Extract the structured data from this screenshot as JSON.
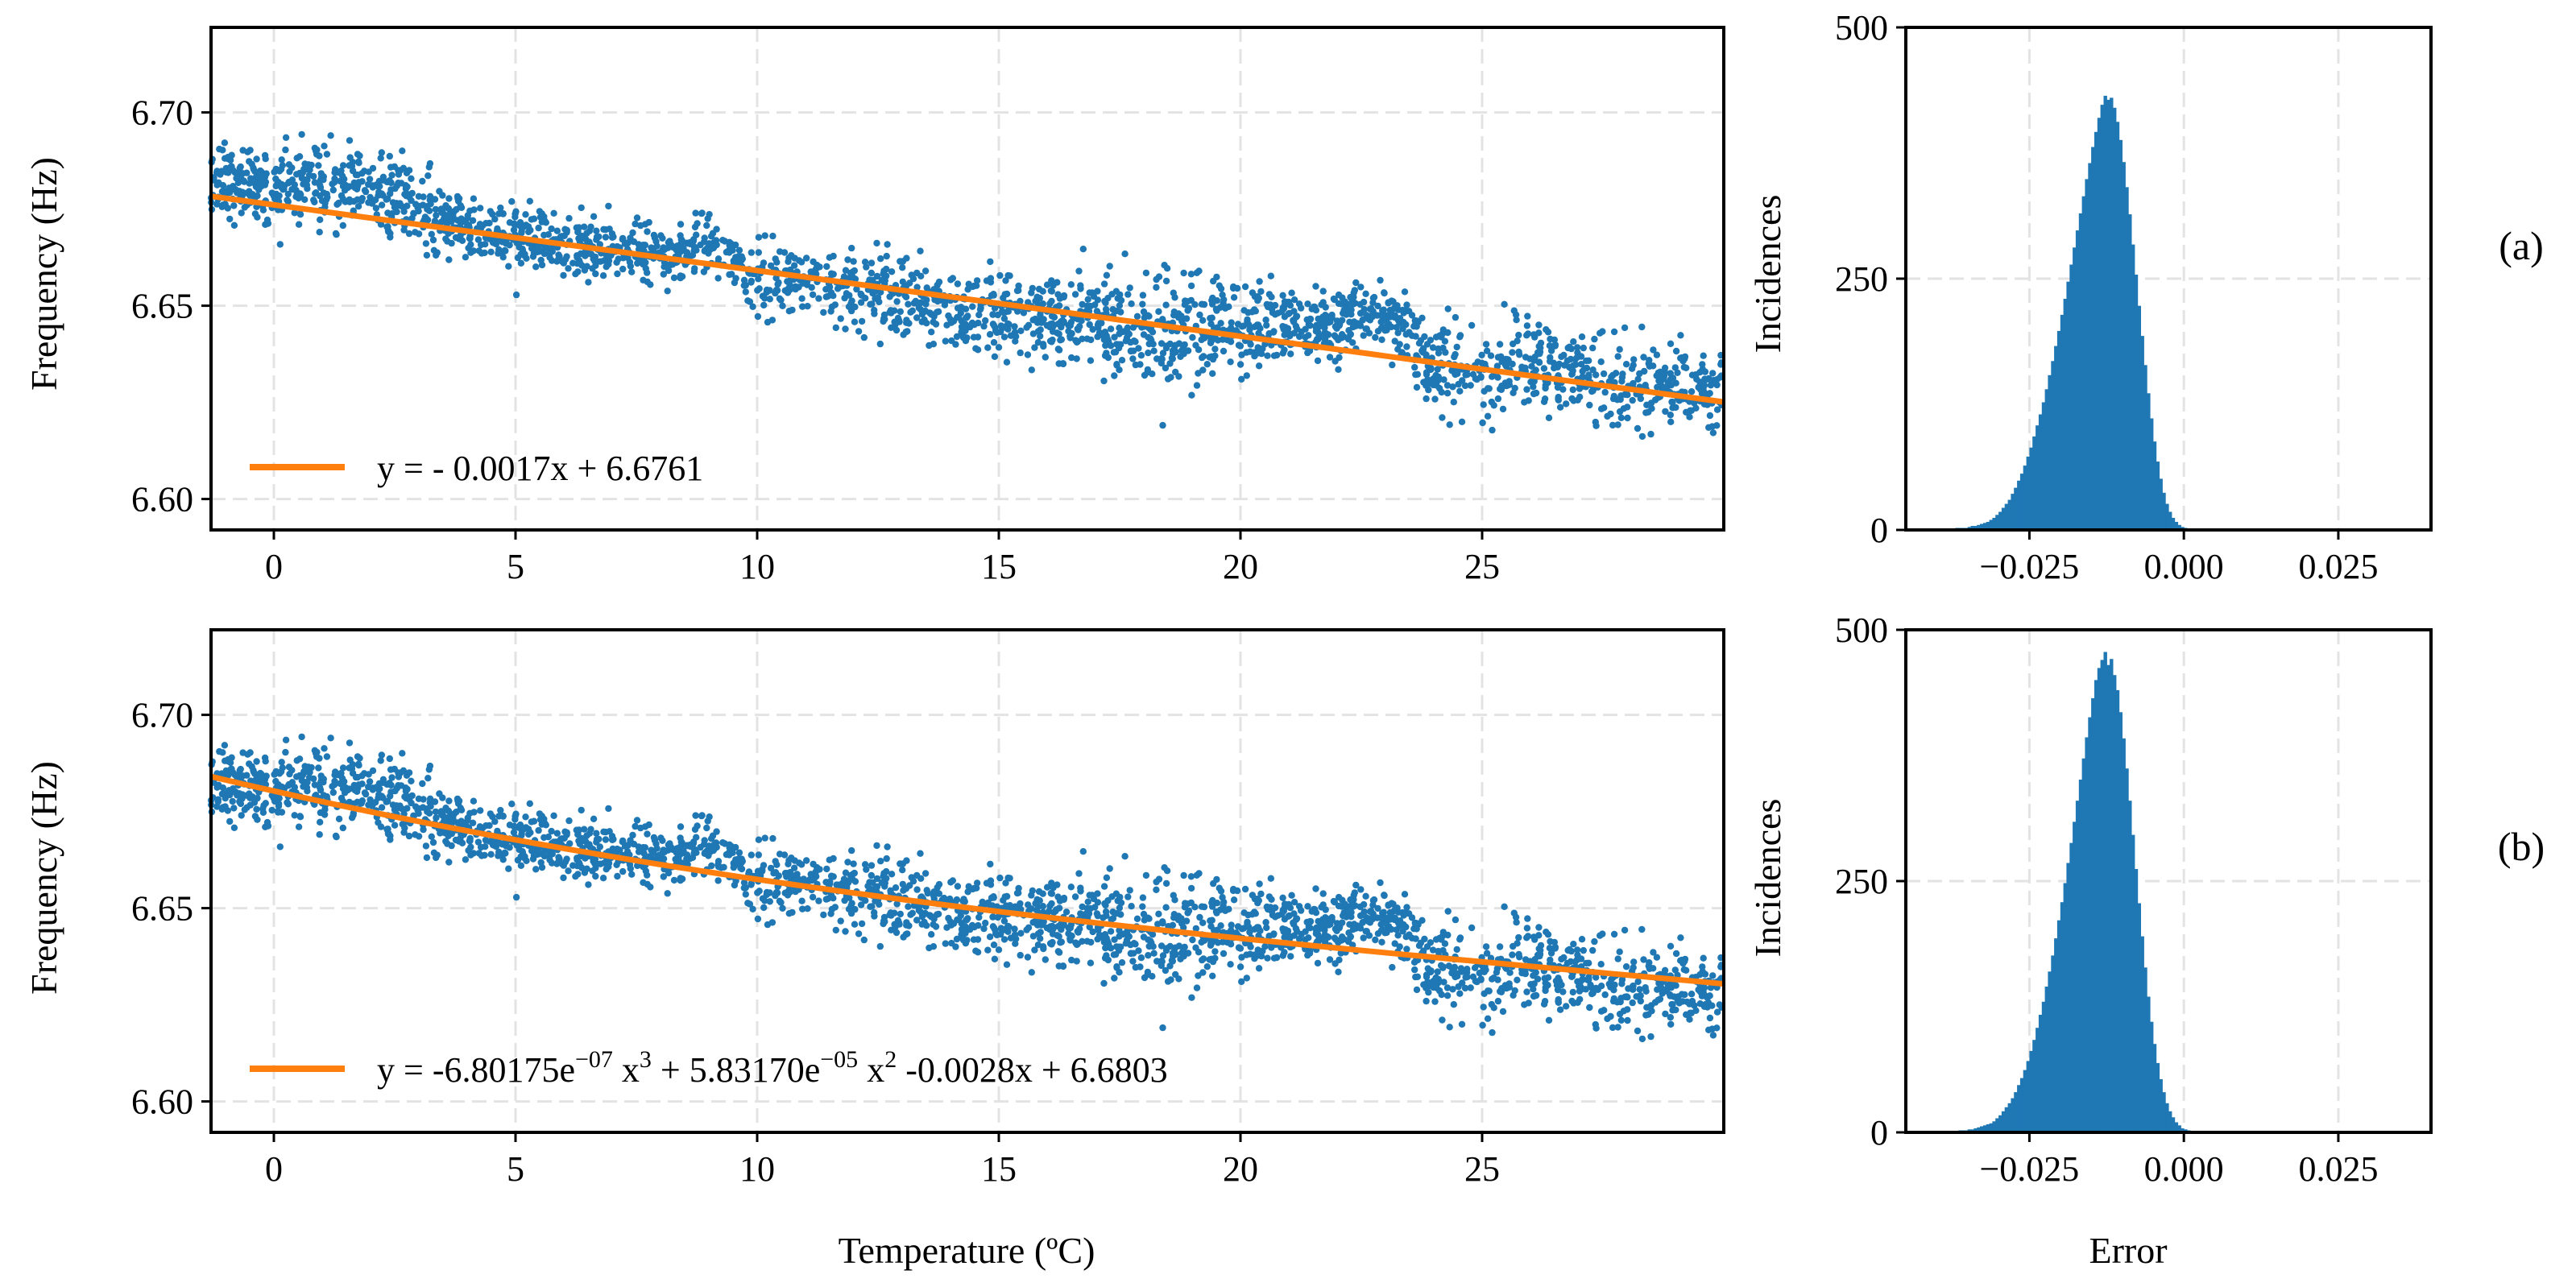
{
  "figure": {
    "xlabel_main": "Temperature (ºC)",
    "xlabel_hist": "Error",
    "ylabel_main": "Frequency (Hz)",
    "ylabel_hist": "Incidences"
  },
  "colors": {
    "scatter": "#1f77b4",
    "fit": "#ff7f0e",
    "grid": "#e3e3e3"
  },
  "chart_data": [
    {
      "id": "scatter-a",
      "type": "scatter",
      "panel_label": "(a)",
      "title": "",
      "xlabel": "",
      "ylabel": "Frequency (Hz)",
      "xlim": [
        -1.3,
        30
      ],
      "ylim": [
        6.592,
        6.722
      ],
      "xticks": [
        0,
        5,
        10,
        15,
        20,
        25
      ],
      "xtick_labels": [
        "0",
        "5",
        "10",
        "15",
        "20",
        "25"
      ],
      "yticks": [
        6.6,
        6.65,
        6.7
      ],
      "ytick_labels": [
        "6.60",
        "6.65",
        "6.70"
      ],
      "scatter_trend": [
        [
          -1.3,
          6.682
        ],
        [
          0,
          6.68
        ],
        [
          2,
          6.681
        ],
        [
          4,
          6.67
        ],
        [
          6,
          6.666
        ],
        [
          8,
          6.664
        ],
        [
          9,
          6.665
        ],
        [
          10,
          6.657
        ],
        [
          12,
          6.655
        ],
        [
          14,
          6.649
        ],
        [
          15,
          6.648
        ],
        [
          16,
          6.647
        ],
        [
          17,
          6.646
        ],
        [
          18,
          6.643
        ],
        [
          19,
          6.643
        ],
        [
          20,
          6.645
        ],
        [
          21,
          6.645
        ],
        [
          22,
          6.645
        ],
        [
          23,
          6.648
        ],
        [
          24,
          6.636
        ],
        [
          25,
          6.632
        ],
        [
          26,
          6.636
        ],
        [
          27,
          6.632
        ],
        [
          28,
          6.63
        ],
        [
          29,
          6.629
        ],
        [
          30,
          6.629
        ]
      ],
      "scatter_spread": [
        [
          -1.3,
          0.006
        ],
        [
          2,
          0.008
        ],
        [
          5,
          0.006
        ],
        [
          8,
          0.005
        ],
        [
          10,
          0.006
        ],
        [
          12,
          0.007
        ],
        [
          15,
          0.007
        ],
        [
          17,
          0.008
        ],
        [
          18,
          0.011
        ],
        [
          19,
          0.012
        ],
        [
          20,
          0.007
        ],
        [
          23,
          0.006
        ],
        [
          24,
          0.009
        ],
        [
          26,
          0.008
        ],
        [
          30,
          0.008
        ]
      ],
      "n_points": 2600,
      "fit": {
        "label": "y = - 0.0017x + 6.6761",
        "coefficients": [
          -0.0017,
          6.6761
        ],
        "color": "#ff7f0e"
      }
    },
    {
      "id": "hist-a",
      "type": "bar",
      "title": "",
      "xlabel": "",
      "ylabel": "Incidences",
      "xlim": [
        -0.045,
        0.04
      ],
      "ylim": [
        0,
        500
      ],
      "xticks": [
        -0.025,
        0,
        0.025
      ],
      "xtick_labels": [
        "−0.025",
        "0.000",
        "0.025"
      ],
      "yticks": [
        0,
        250,
        500
      ],
      "ytick_labels": [
        "0",
        "250",
        "500"
      ],
      "bin_width": 0.0005,
      "bin_start": -0.04,
      "counts": [
        0,
        0,
        1,
        1,
        1,
        1,
        2,
        2,
        2,
        2,
        3,
        4,
        4,
        5,
        6,
        7,
        8,
        10,
        12,
        15,
        18,
        22,
        26,
        30,
        36,
        42,
        49,
        56,
        64,
        73,
        82,
        93,
        104,
        115,
        127,
        140,
        154,
        168,
        183,
        198,
        214,
        230,
        247,
        264,
        281,
        298,
        315,
        332,
        349,
        365,
        381,
        396,
        410,
        423,
        432,
        428,
        430,
        420,
        406,
        388,
        366,
        341,
        314,
        284,
        254,
        223,
        193,
        164,
        136,
        111,
        88,
        68,
        51,
        37,
        26,
        18,
        12,
        8,
        5,
        3,
        2,
        1,
        1,
        0,
        0,
        0,
        0,
        0,
        0
      ]
    },
    {
      "id": "scatter-b",
      "type": "scatter",
      "panel_label": "(b)",
      "title": "",
      "xlabel": "Temperature (ºC)",
      "ylabel": "Frequency (Hz)",
      "xlim": [
        -1.3,
        30
      ],
      "ylim": [
        6.592,
        6.722
      ],
      "xticks": [
        0,
        5,
        10,
        15,
        20,
        25
      ],
      "xtick_labels": [
        "0",
        "5",
        "10",
        "15",
        "20",
        "25"
      ],
      "yticks": [
        6.6,
        6.65,
        6.7
      ],
      "ytick_labels": [
        "6.60",
        "6.65",
        "6.70"
      ],
      "fit": {
        "label_parts": [
          "y = -6.80175e",
          "−07",
          " x",
          "3",
          " + 5.83170e",
          "−05",
          " x",
          "2",
          " -0.0028x + 6.6803"
        ],
        "coefficients": [
          -6.80175e-07,
          5.8317e-05,
          -0.0028,
          6.6803
        ],
        "color": "#ff7f0e"
      }
    },
    {
      "id": "hist-b",
      "type": "bar",
      "title": "",
      "xlabel": "Error",
      "ylabel": "Incidences",
      "xlim": [
        -0.045,
        0.04
      ],
      "ylim": [
        0,
        500
      ],
      "xticks": [
        -0.025,
        0,
        0.025
      ],
      "xtick_labels": [
        "−0.025",
        "0.000",
        "0.025"
      ],
      "yticks": [
        0,
        250,
        500
      ],
      "ytick_labels": [
        "0",
        "250",
        "500"
      ],
      "bin_width": 0.0005,
      "bin_start": -0.04,
      "counts": [
        0,
        0,
        0,
        1,
        1,
        1,
        1,
        2,
        2,
        2,
        3,
        3,
        4,
        5,
        6,
        7,
        8,
        9,
        11,
        14,
        17,
        21,
        25,
        29,
        34,
        40,
        47,
        54,
        62,
        71,
        81,
        92,
        104,
        117,
        130,
        145,
        160,
        176,
        193,
        211,
        229,
        248,
        268,
        288,
        309,
        330,
        351,
        372,
        393,
        413,
        432,
        450,
        462,
        470,
        478,
        465,
        471,
        455,
        440,
        418,
        392,
        362,
        330,
        296,
        262,
        228,
        195,
        164,
        135,
        110,
        88,
        69,
        53,
        40,
        29,
        21,
        15,
        10,
        7,
        4,
        3,
        2,
        1,
        1,
        0,
        0,
        0,
        0,
        0
      ]
    }
  ]
}
